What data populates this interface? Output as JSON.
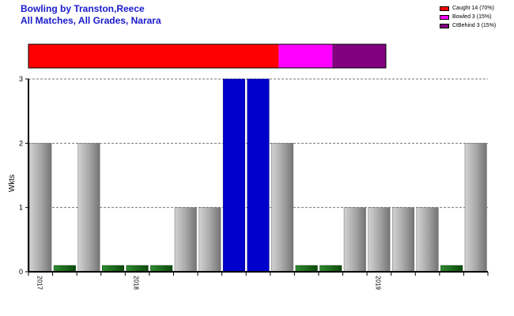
{
  "title": "Bowling by Transton,Reece",
  "subtitle": "All Matches, All Grades, Narara",
  "legend": [
    {
      "label": "Caught 14 (70%)",
      "color": "#ff0000"
    },
    {
      "label": "Bowled 3 (15%)",
      "color": "#ff00ff"
    },
    {
      "label": "CtBehind 3 (15%)",
      "color": "#800080"
    }
  ],
  "colors": {
    "wicket_bar": "#a0a0a0",
    "zero_bar": "#1e6b1e",
    "best_bar": "#0000cc"
  },
  "chart_data": {
    "type": "bar",
    "ylabel": "Wkts",
    "xlabel": "",
    "ylim": [
      0,
      3
    ],
    "yticks": [
      0,
      1,
      2,
      3
    ],
    "grid": true,
    "x_year_labels": [
      {
        "label": "2017",
        "index": 0
      },
      {
        "label": "2018",
        "index": 4
      },
      {
        "label": "2019",
        "index": 14
      }
    ],
    "values": [
      2,
      0,
      2,
      0,
      0,
      0,
      1,
      1,
      3,
      3,
      2,
      0,
      0,
      1,
      1,
      1,
      1,
      0,
      2
    ],
    "dismissal_breakdown": [
      {
        "name": "Caught",
        "count": 14,
        "percent": 70
      },
      {
        "name": "Bowled",
        "count": 3,
        "percent": 15
      },
      {
        "name": "CtBehind",
        "count": 3,
        "percent": 15
      }
    ]
  }
}
